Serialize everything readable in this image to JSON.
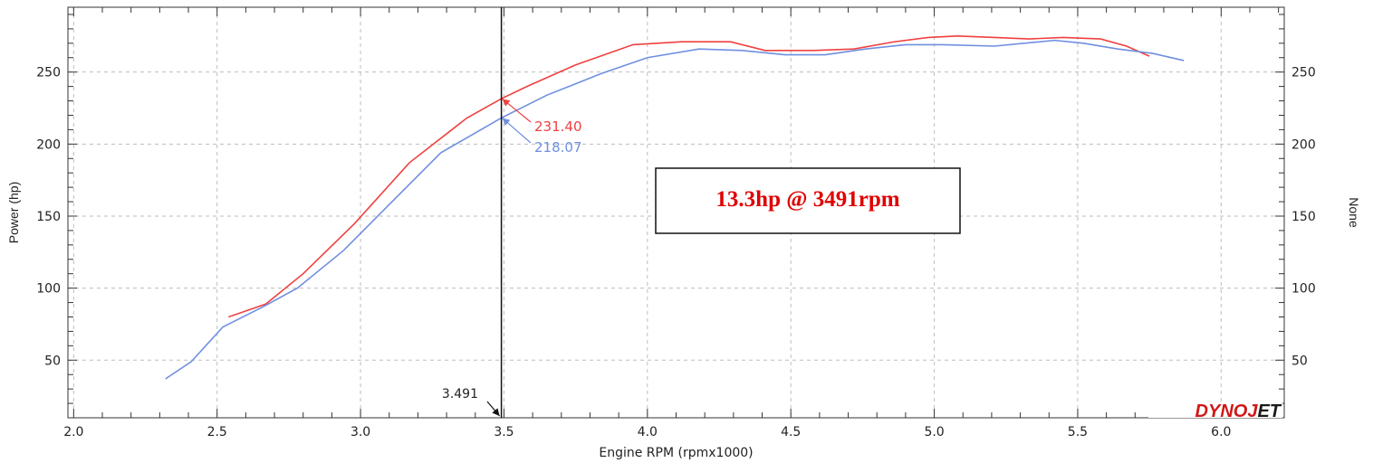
{
  "chart_data": {
    "type": "line",
    "xlabel": "Engine RPM (rpmx1000)",
    "ylabel": "Power (hp)",
    "y2label": "None",
    "xlim": [
      1.98,
      6.22
    ],
    "ylim": [
      10,
      295
    ],
    "grid": true,
    "x_ticks": [
      "2.0",
      "2.5",
      "3.0",
      "3.5",
      "4.0",
      "4.5",
      "5.0",
      "5.5",
      "6.0"
    ],
    "y_ticks": [
      "50",
      "100",
      "150",
      "200",
      "250"
    ],
    "series": [
      {
        "color": "#f04040",
        "x": [
          2.54,
          2.67,
          2.8,
          2.98,
          3.17,
          3.37,
          3.49,
          3.58,
          3.75,
          3.95,
          4.12,
          4.29,
          4.41,
          4.58,
          4.72,
          4.86,
          4.98,
          5.08,
          5.21,
          5.33,
          5.45,
          5.58,
          5.67,
          5.75
        ],
        "values": [
          80,
          89,
          110,
          145,
          187,
          218,
          231.4,
          240,
          255,
          269,
          271,
          271,
          265,
          265,
          266,
          271,
          274,
          275,
          274,
          273,
          274,
          273,
          268,
          261
        ]
      },
      {
        "color": "#6f8fe0",
        "x": [
          2.32,
          2.41,
          2.52,
          2.66,
          2.78,
          2.94,
          3.1,
          3.28,
          3.49,
          3.65,
          3.84,
          4.0,
          4.18,
          4.33,
          4.48,
          4.62,
          4.76,
          4.9,
          5.03,
          5.21,
          5.42,
          5.52,
          5.64,
          5.76,
          5.87
        ],
        "values": [
          37,
          49,
          73,
          87,
          100,
          126,
          158,
          194,
          218.07,
          234,
          249,
          260,
          266,
          265,
          262,
          262,
          266,
          269,
          269,
          268,
          272,
          270,
          266,
          263,
          258
        ]
      }
    ],
    "cursor": {
      "x": 3.491,
      "label": "3.491"
    },
    "data_labels": [
      {
        "series": 0,
        "text": "231.40"
      },
      {
        "series": 1,
        "text": "218.07"
      }
    ],
    "annotation": "13.3hp @ 3491rpm",
    "logo": "DYNOJET"
  }
}
